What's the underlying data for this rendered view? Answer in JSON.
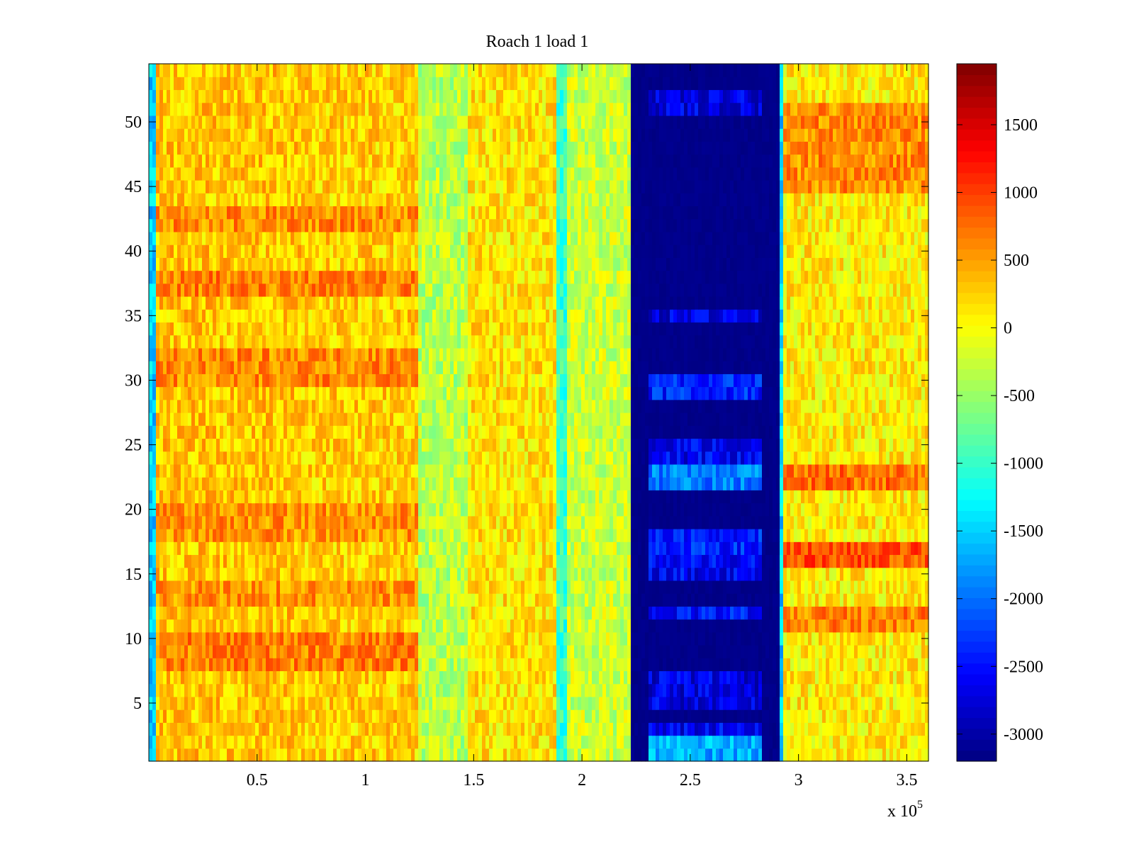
{
  "chart_data": {
    "type": "heatmap",
    "title": "Roach 1 load 1",
    "colormap": "jet",
    "xlim": [
      0,
      360000
    ],
    "ylim": [
      0.5,
      54.5
    ],
    "x_exponent_label": "x 10",
    "x_exponent_power": "5",
    "xticks": [
      {
        "value": 50000,
        "label": "0.5"
      },
      {
        "value": 100000,
        "label": "1"
      },
      {
        "value": 150000,
        "label": "1.5"
      },
      {
        "value": 200000,
        "label": "2"
      },
      {
        "value": 250000,
        "label": "2.5"
      },
      {
        "value": 300000,
        "label": "3"
      },
      {
        "value": 350000,
        "label": "3.5"
      }
    ],
    "yticks": [
      {
        "value": 5,
        "label": "5"
      },
      {
        "value": 10,
        "label": "10"
      },
      {
        "value": 15,
        "label": "15"
      },
      {
        "value": 20,
        "label": "20"
      },
      {
        "value": 25,
        "label": "25"
      },
      {
        "value": 30,
        "label": "30"
      },
      {
        "value": 35,
        "label": "35"
      },
      {
        "value": 40,
        "label": "40"
      },
      {
        "value": 45,
        "label": "45"
      },
      {
        "value": 50,
        "label": "50"
      }
    ],
    "colorbar": {
      "clim": [
        -3200,
        1950
      ],
      "ticks": [
        {
          "value": 1500,
          "label": "1500"
        },
        {
          "value": 1000,
          "label": "1000"
        },
        {
          "value": 500,
          "label": "500"
        },
        {
          "value": 0,
          "label": "0"
        },
        {
          "value": -500,
          "label": "-500"
        },
        {
          "value": -1000,
          "label": "-1000"
        },
        {
          "value": -1500,
          "label": "-1500"
        },
        {
          "value": -2000,
          "label": "-2000"
        },
        {
          "value": -2500,
          "label": "-2500"
        },
        {
          "value": -3000,
          "label": "-3000"
        }
      ]
    },
    "column_profile": [
      {
        "x0": 0,
        "x1": 3000,
        "value": -1500
      },
      {
        "x0": 3000,
        "x1": 70000,
        "value": 300
      },
      {
        "x0": 70000,
        "x1": 125000,
        "value": 250
      },
      {
        "x0": 125000,
        "x1": 147000,
        "value": -350
      },
      {
        "x0": 147000,
        "x1": 188000,
        "value": 150
      },
      {
        "x0": 188000,
        "x1": 193000,
        "value": -1000
      },
      {
        "x0": 193000,
        "x1": 223000,
        "value": -250
      },
      {
        "x0": 223000,
        "x1": 291000,
        "value": -3150
      },
      {
        "x0": 291000,
        "x1": 293000,
        "value": -1500
      },
      {
        "x0": 293000,
        "x1": 360000,
        "value": 100
      }
    ],
    "row_bands_hot": [
      {
        "rows": [
          8,
          10
        ],
        "value": 650
      },
      {
        "rows": [
          13,
          14
        ],
        "value": 550
      },
      {
        "rows": [
          18,
          20
        ],
        "value": 550
      },
      {
        "rows": [
          30,
          32
        ],
        "value": 600
      },
      {
        "rows": [
          37,
          38
        ],
        "value": 650
      },
      {
        "rows": [
          42,
          43
        ],
        "value": 600
      }
    ],
    "right_block_hot": [
      {
        "rows": [
          16,
          17
        ],
        "value": 900
      },
      {
        "rows": [
          22,
          23
        ],
        "value": 750
      },
      {
        "rows": [
          11,
          12
        ],
        "value": 650
      },
      {
        "rows": [
          45,
          51
        ],
        "value": 600
      }
    ],
    "dark_block_bands": [
      {
        "rows": [
          1,
          2
        ],
        "value": -1700
      },
      {
        "rows": [
          3,
          3
        ],
        "value": -2600
      },
      {
        "rows": [
          5,
          7
        ],
        "value": -2700
      },
      {
        "rows": [
          12,
          12
        ],
        "value": -2500
      },
      {
        "rows": [
          15,
          16
        ],
        "value": -2600
      },
      {
        "rows": [
          17,
          18
        ],
        "value": -2400
      },
      {
        "rows": [
          22,
          23
        ],
        "value": -1900
      },
      {
        "rows": [
          24,
          25
        ],
        "value": -2600
      },
      {
        "rows": [
          29,
          30
        ],
        "value": -2400
      },
      {
        "rows": [
          35,
          35
        ],
        "value": -2700
      },
      {
        "rows": [
          51,
          52
        ],
        "value": -2700
      }
    ]
  }
}
